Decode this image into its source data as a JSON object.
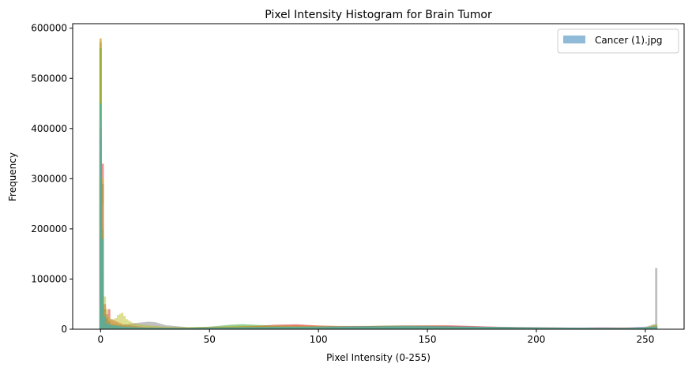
{
  "chart_data": {
    "type": "histogram",
    "title": "Pixel Intensity Histogram for Brain Tumor",
    "xlabel": "Pixel Intensity (0-255)",
    "ylabel": "Frequency",
    "xlim": [
      -12.8,
      267.8
    ],
    "ylim": [
      0,
      609000
    ],
    "xticks": [
      0,
      50,
      100,
      150,
      200,
      250
    ],
    "yticks": [
      0,
      100000,
      200000,
      300000,
      400000,
      500000,
      600000
    ],
    "legend": {
      "position": "top-right",
      "entries": [
        "Cancer (1).jpg"
      ]
    },
    "grid": false,
    "series": [
      {
        "name": "Cancer (1).jpg",
        "color": "#1f77b4",
        "values": [
          [
            0,
            572000
          ],
          [
            1,
            290000
          ],
          [
            2,
            30000
          ],
          [
            3,
            12000
          ],
          [
            4,
            8000
          ],
          [
            5,
            6000
          ],
          [
            6,
            5000
          ],
          [
            8,
            4000
          ],
          [
            10,
            3500
          ],
          [
            15,
            3000
          ],
          [
            20,
            2500
          ],
          [
            30,
            2500
          ],
          [
            40,
            3000
          ],
          [
            50,
            3000
          ],
          [
            60,
            3500
          ],
          [
            70,
            4000
          ],
          [
            80,
            4500
          ],
          [
            90,
            5000
          ],
          [
            100,
            5000
          ],
          [
            110,
            5500
          ],
          [
            120,
            6000
          ],
          [
            130,
            6000
          ],
          [
            140,
            6000
          ],
          [
            150,
            5500
          ],
          [
            160,
            5000
          ],
          [
            170,
            4500
          ],
          [
            180,
            4000
          ],
          [
            190,
            3500
          ],
          [
            200,
            3000
          ],
          [
            210,
            2800
          ],
          [
            220,
            2500
          ],
          [
            230,
            2500
          ],
          [
            240,
            2500
          ],
          [
            250,
            3000
          ],
          [
            255,
            8000
          ]
        ]
      },
      {
        "color": "#ff7f0e",
        "values": [
          [
            0,
            580000
          ],
          [
            1,
            100000
          ],
          [
            2,
            22000
          ],
          [
            3,
            15000
          ],
          [
            4,
            10000
          ],
          [
            5,
            8000
          ],
          [
            10,
            5000
          ],
          [
            20,
            3000
          ],
          [
            30,
            3000
          ],
          [
            40,
            3500
          ],
          [
            50,
            4000
          ],
          [
            60,
            5000
          ],
          [
            70,
            6000
          ],
          [
            80,
            7000
          ],
          [
            90,
            8000
          ],
          [
            100,
            7500
          ],
          [
            110,
            6500
          ],
          [
            120,
            6500
          ],
          [
            130,
            7000
          ],
          [
            140,
            7000
          ],
          [
            150,
            7000
          ],
          [
            160,
            6500
          ],
          [
            170,
            6000
          ],
          [
            180,
            5000
          ],
          [
            190,
            4500
          ],
          [
            200,
            4000
          ],
          [
            210,
            3500
          ],
          [
            220,
            3000
          ],
          [
            230,
            3000
          ],
          [
            240,
            3500
          ],
          [
            250,
            3000
          ],
          [
            255,
            4000
          ]
        ]
      },
      {
        "color": "#2ca02c",
        "values": [
          [
            0,
            560000
          ],
          [
            1,
            200000
          ],
          [
            2,
            40000
          ],
          [
            3,
            20000
          ],
          [
            4,
            14000
          ],
          [
            5,
            10000
          ],
          [
            10,
            6000
          ],
          [
            20,
            3500
          ],
          [
            30,
            3000
          ],
          [
            40,
            3500
          ],
          [
            50,
            5000
          ],
          [
            60,
            9000
          ],
          [
            65,
            10000
          ],
          [
            70,
            9000
          ],
          [
            80,
            7000
          ],
          [
            90,
            6000
          ],
          [
            100,
            5500
          ],
          [
            110,
            5000
          ],
          [
            120,
            6000
          ],
          [
            130,
            7000
          ],
          [
            140,
            7500
          ],
          [
            150,
            7000
          ],
          [
            160,
            6000
          ],
          [
            170,
            5000
          ],
          [
            180,
            4500
          ],
          [
            190,
            4000
          ],
          [
            200,
            3500
          ],
          [
            210,
            3000
          ],
          [
            220,
            2800
          ],
          [
            230,
            2500
          ],
          [
            240,
            2500
          ],
          [
            250,
            3000
          ],
          [
            255,
            5000
          ]
        ]
      },
      {
        "color": "#d62728",
        "values": [
          [
            0,
            400000
          ],
          [
            1,
            330000
          ],
          [
            2,
            50000
          ],
          [
            3,
            30000
          ],
          [
            4,
            40000
          ],
          [
            5,
            20000
          ],
          [
            10,
            10000
          ],
          [
            20,
            4000
          ],
          [
            30,
            3000
          ],
          [
            40,
            3000
          ],
          [
            50,
            3500
          ],
          [
            60,
            4500
          ],
          [
            70,
            6000
          ],
          [
            80,
            9000
          ],
          [
            90,
            10000
          ],
          [
            100,
            7000
          ],
          [
            110,
            6000
          ],
          [
            120,
            6000
          ],
          [
            130,
            6500
          ],
          [
            140,
            7000
          ],
          [
            150,
            7500
          ],
          [
            160,
            8000
          ],
          [
            170,
            6500
          ],
          [
            180,
            5000
          ],
          [
            190,
            4000
          ],
          [
            200,
            3500
          ],
          [
            210,
            3000
          ],
          [
            220,
            3000
          ],
          [
            230,
            3500
          ],
          [
            240,
            3000
          ],
          [
            250,
            3000
          ],
          [
            255,
            6000
          ]
        ]
      },
      {
        "color": "#9467bd",
        "values": [
          [
            0,
            350000
          ],
          [
            1,
            150000
          ],
          [
            2,
            25000
          ],
          [
            3,
            12000
          ],
          [
            5,
            8000
          ],
          [
            10,
            5000
          ],
          [
            20,
            3000
          ],
          [
            40,
            2500
          ],
          [
            60,
            3000
          ],
          [
            80,
            4000
          ],
          [
            100,
            4500
          ],
          [
            120,
            5000
          ],
          [
            140,
            5500
          ],
          [
            160,
            5000
          ],
          [
            180,
            4000
          ],
          [
            200,
            3000
          ],
          [
            220,
            2500
          ],
          [
            240,
            2500
          ],
          [
            255,
            4000
          ]
        ]
      },
      {
        "color": "#8c564b",
        "values": [
          [
            0,
            300000
          ],
          [
            1,
            120000
          ],
          [
            2,
            20000
          ],
          [
            3,
            10000
          ],
          [
            5,
            6000
          ],
          [
            10,
            4000
          ],
          [
            20,
            3000
          ],
          [
            40,
            2500
          ],
          [
            60,
            3500
          ],
          [
            80,
            5000
          ],
          [
            100,
            5000
          ],
          [
            120,
            5500
          ],
          [
            140,
            6000
          ],
          [
            160,
            5500
          ],
          [
            180,
            4500
          ],
          [
            200,
            3500
          ],
          [
            220,
            3000
          ],
          [
            240,
            2500
          ],
          [
            255,
            5000
          ]
        ]
      },
      {
        "color": "#e377c2",
        "values": [
          [
            0,
            420000
          ],
          [
            1,
            250000
          ],
          [
            2,
            35000
          ],
          [
            3,
            15000
          ],
          [
            5,
            9000
          ],
          [
            10,
            6000
          ],
          [
            20,
            4000
          ],
          [
            40,
            3000
          ],
          [
            60,
            4000
          ],
          [
            80,
            6000
          ],
          [
            100,
            6000
          ],
          [
            120,
            6000
          ],
          [
            140,
            6500
          ],
          [
            160,
            6000
          ],
          [
            180,
            5000
          ],
          [
            200,
            4000
          ],
          [
            220,
            3500
          ],
          [
            230,
            4000
          ],
          [
            240,
            3500
          ],
          [
            255,
            6000
          ]
        ]
      },
      {
        "color": "#7f7f7f",
        "values": [
          [
            0,
            380000
          ],
          [
            1,
            200000
          ],
          [
            2,
            30000
          ],
          [
            5,
            10000
          ],
          [
            10,
            8000
          ],
          [
            15,
            12000
          ],
          [
            20,
            14000
          ],
          [
            22,
            15000
          ],
          [
            25,
            14000
          ],
          [
            30,
            8000
          ],
          [
            40,
            4000
          ],
          [
            60,
            4500
          ],
          [
            80,
            5500
          ],
          [
            100,
            5500
          ],
          [
            120,
            6000
          ],
          [
            140,
            6000
          ],
          [
            160,
            5500
          ],
          [
            180,
            4500
          ],
          [
            200,
            3500
          ],
          [
            220,
            3000
          ],
          [
            240,
            3000
          ],
          [
            250,
            4000
          ],
          [
            254,
            10000
          ],
          [
            255,
            122000
          ]
        ]
      },
      {
        "color": "#bcbd22",
        "values": [
          [
            0,
            578000
          ],
          [
            1,
            300000
          ],
          [
            2,
            65000
          ],
          [
            3,
            40000
          ],
          [
            4,
            25000
          ],
          [
            5,
            18000
          ],
          [
            7,
            22000
          ],
          [
            8,
            28000
          ],
          [
            10,
            33000
          ],
          [
            12,
            20000
          ],
          [
            15,
            12000
          ],
          [
            20,
            8000
          ],
          [
            30,
            5000
          ],
          [
            40,
            4000
          ],
          [
            50,
            4500
          ],
          [
            60,
            6000
          ],
          [
            70,
            7000
          ],
          [
            80,
            7000
          ],
          [
            90,
            6500
          ],
          [
            100,
            6000
          ],
          [
            110,
            5500
          ],
          [
            120,
            5500
          ],
          [
            130,
            6000
          ],
          [
            140,
            6000
          ],
          [
            150,
            5500
          ],
          [
            160,
            5000
          ],
          [
            170,
            4500
          ],
          [
            180,
            4000
          ],
          [
            190,
            3500
          ],
          [
            200,
            3000
          ],
          [
            210,
            2800
          ],
          [
            220,
            2500
          ],
          [
            230,
            2500
          ],
          [
            240,
            2500
          ],
          [
            250,
            3500
          ],
          [
            255,
            10000
          ]
        ]
      },
      {
        "color": "#17becf",
        "values": [
          [
            0,
            450000
          ],
          [
            1,
            180000
          ],
          [
            2,
            25000
          ],
          [
            3,
            12000
          ],
          [
            5,
            8000
          ],
          [
            10,
            5000
          ],
          [
            20,
            3000
          ],
          [
            40,
            2500
          ],
          [
            60,
            3500
          ],
          [
            80,
            4500
          ],
          [
            100,
            5000
          ],
          [
            120,
            5500
          ],
          [
            140,
            6000
          ],
          [
            160,
            5500
          ],
          [
            180,
            4500
          ],
          [
            200,
            3500
          ],
          [
            220,
            3000
          ],
          [
            240,
            2500
          ],
          [
            255,
            5000
          ]
        ]
      }
    ]
  }
}
